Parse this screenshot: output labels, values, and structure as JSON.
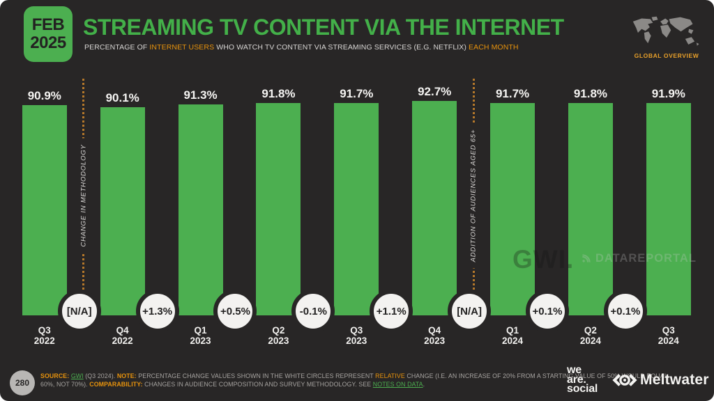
{
  "header": {
    "badge_month": "FEB",
    "badge_year": "2025",
    "title": "STREAMING TV CONTENT VIA THE INTERNET",
    "subtitle_segments": [
      {
        "text": "PERCENTAGE OF ",
        "style": "normal"
      },
      {
        "text": "INTERNET USERS",
        "style": "orange"
      },
      {
        "text": " WHO WATCH TV CONTENT VIA STREAMING SERVICES (E.G. NETFLIX) ",
        "style": "normal"
      },
      {
        "text": "EACH MONTH",
        "style": "orange"
      }
    ],
    "region_label": "GLOBAL OVERVIEW"
  },
  "chart_data": {
    "type": "bar",
    "title": "STREAMING TV CONTENT VIA THE INTERNET",
    "categories": [
      "Q3 2022",
      "Q4 2022",
      "Q1 2023",
      "Q2 2023",
      "Q3 2023",
      "Q4 2023",
      "Q1 2024",
      "Q2 2024",
      "Q3 2024"
    ],
    "values": [
      90.9,
      90.1,
      91.3,
      91.8,
      91.7,
      92.7,
      91.7,
      91.8,
      91.9
    ],
    "value_labels": [
      "90.9%",
      "90.1%",
      "91.3%",
      "91.8%",
      "91.7%",
      "92.7%",
      "91.7%",
      "91.8%",
      "91.9%"
    ],
    "change_labels": [
      "[N/A]",
      "+1.3%",
      "+0.5%",
      "-0.1%",
      "+1.1%",
      "[N/A]",
      "+0.1%",
      "+0.1%"
    ],
    "annotations": [
      {
        "between_index": 0,
        "label": "CHANGE IN METHODOLOGY"
      },
      {
        "between_index": 5,
        "label": "ADDITION OF AUDIENCES AGED 65+"
      }
    ],
    "ylim": [
      0,
      100
    ],
    "grid": false,
    "legend_position": "none",
    "bar_color": "#4caf50"
  },
  "watermarks": {
    "gwi": "GWI.",
    "datareportal": "DATAREPORTAL"
  },
  "footer": {
    "page_number": "280",
    "lines": [
      [
        {
          "text": "SOURCE:",
          "style": "label"
        },
        {
          "text": " ",
          "style": "normal"
        },
        {
          "text": "GWI",
          "style": "link"
        },
        {
          "text": " (Q3 2024). ",
          "style": "normal"
        },
        {
          "text": "NOTE:",
          "style": "label"
        },
        {
          "text": " PERCENTAGE CHANGE VALUES SHOWN IN THE WHITE CIRCLES REPRESENT ",
          "style": "normal"
        },
        {
          "text": "RELATIVE",
          "style": "orange"
        },
        {
          "text": " CHANGE (I.E. AN INCREASE OF 20% FROM A STARTING VALUE OF 50% WOULD EQUAL",
          "style": "normal"
        }
      ],
      [
        {
          "text": "60%, NOT 70%). ",
          "style": "normal"
        },
        {
          "text": "COMPARABILITY:",
          "style": "label"
        },
        {
          "text": " CHANGES IN AUDIENCE COMPOSITION AND SURVEY METHODOLOGY. SEE ",
          "style": "normal"
        },
        {
          "text": "NOTES ON DATA",
          "style": "link"
        },
        {
          "text": ".",
          "style": "normal"
        }
      ]
    ],
    "wearesocial_lines": [
      "we",
      "are.",
      "social"
    ],
    "meltwater_label": "Meltwater"
  },
  "colors": {
    "background": "#282626",
    "bar_green": "#4caf50",
    "title_green": "#43b049",
    "accent_orange": "#e8930c",
    "dotted_line": "#b5782a",
    "circle_fill": "#f3f2f0"
  }
}
